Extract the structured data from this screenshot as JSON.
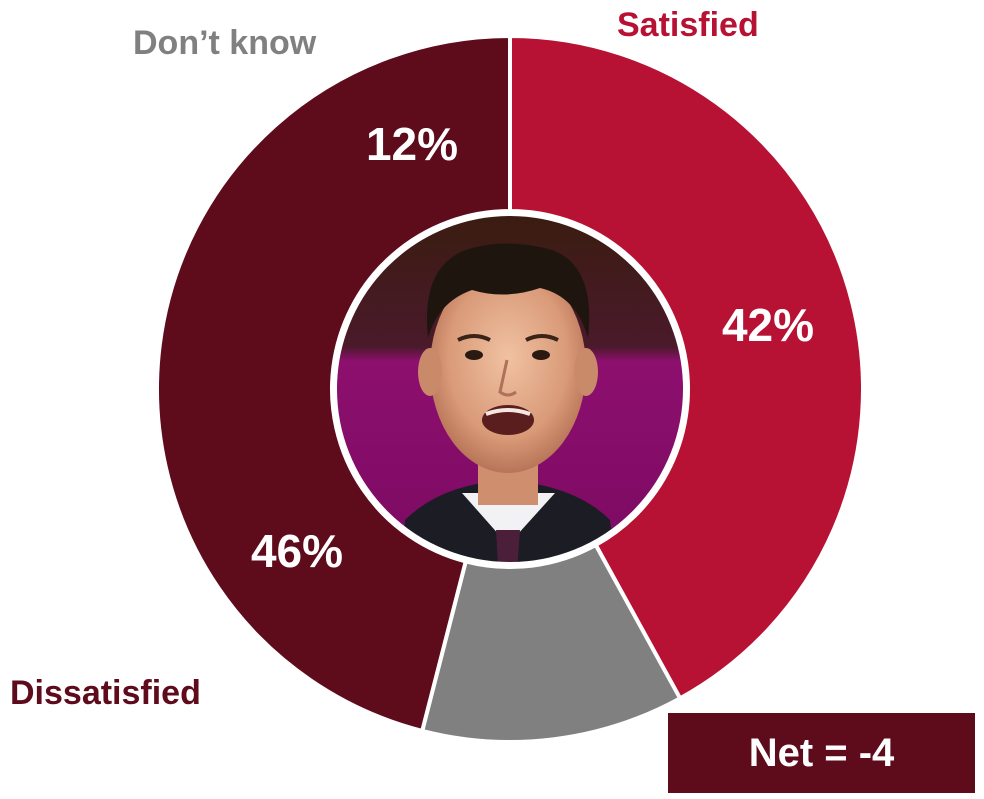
{
  "chart_data": {
    "type": "pie",
    "variant": "donut",
    "title": "",
    "categories": [
      "Satisfied",
      "Don’t know",
      "Dissatisfied"
    ],
    "values": [
      42,
      12,
      46
    ],
    "value_labels": [
      "42%",
      "12%",
      "46%"
    ],
    "colors": {
      "Satisfied": "#B71234",
      "Don’t know": "#808080",
      "Dissatisfied": "#5E0B1C"
    },
    "center_image": "portrait-photo",
    "annotation": "Net = -4"
  },
  "colors": {
    "net_box_bg": "#5E0B1C",
    "label_satisfied": "#B71234",
    "label_dontknow": "#808080",
    "label_dissatisfied": "#5E0B1C"
  }
}
